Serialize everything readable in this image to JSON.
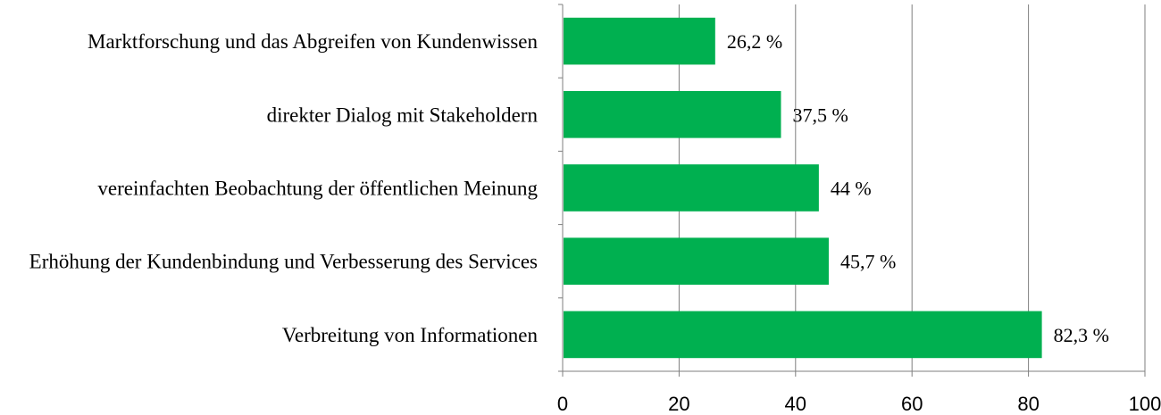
{
  "chart_data": {
    "type": "bar",
    "orientation": "horizontal",
    "categories": [
      "Marktforschung und das Abgreifen von Kundenwissen",
      "direkter  Dialog mit Stakeholdern",
      "vereinfachten Beobachtung der öffentlichen Meinung",
      "Erhöhung der Kundenbindung  und Verbesserung des Services",
      "Verbreitung von Informationen"
    ],
    "values": [
      26.2,
      37.5,
      44,
      45.7,
      82.3
    ],
    "value_labels": [
      "26,2 %",
      "37,5 %",
      "44 %",
      "45,7 %",
      "82,3 %"
    ],
    "xlim": [
      0,
      100
    ],
    "xticks": [
      "0",
      "20",
      "40",
      "60",
      "80",
      "100"
    ],
    "grid": "vertical",
    "legend": "none",
    "title": "",
    "xlabel": "",
    "ylabel": "",
    "colors": {
      "bar": "#00b050",
      "grid": "#7f7f7f",
      "axis": "#7f7f7f"
    }
  }
}
